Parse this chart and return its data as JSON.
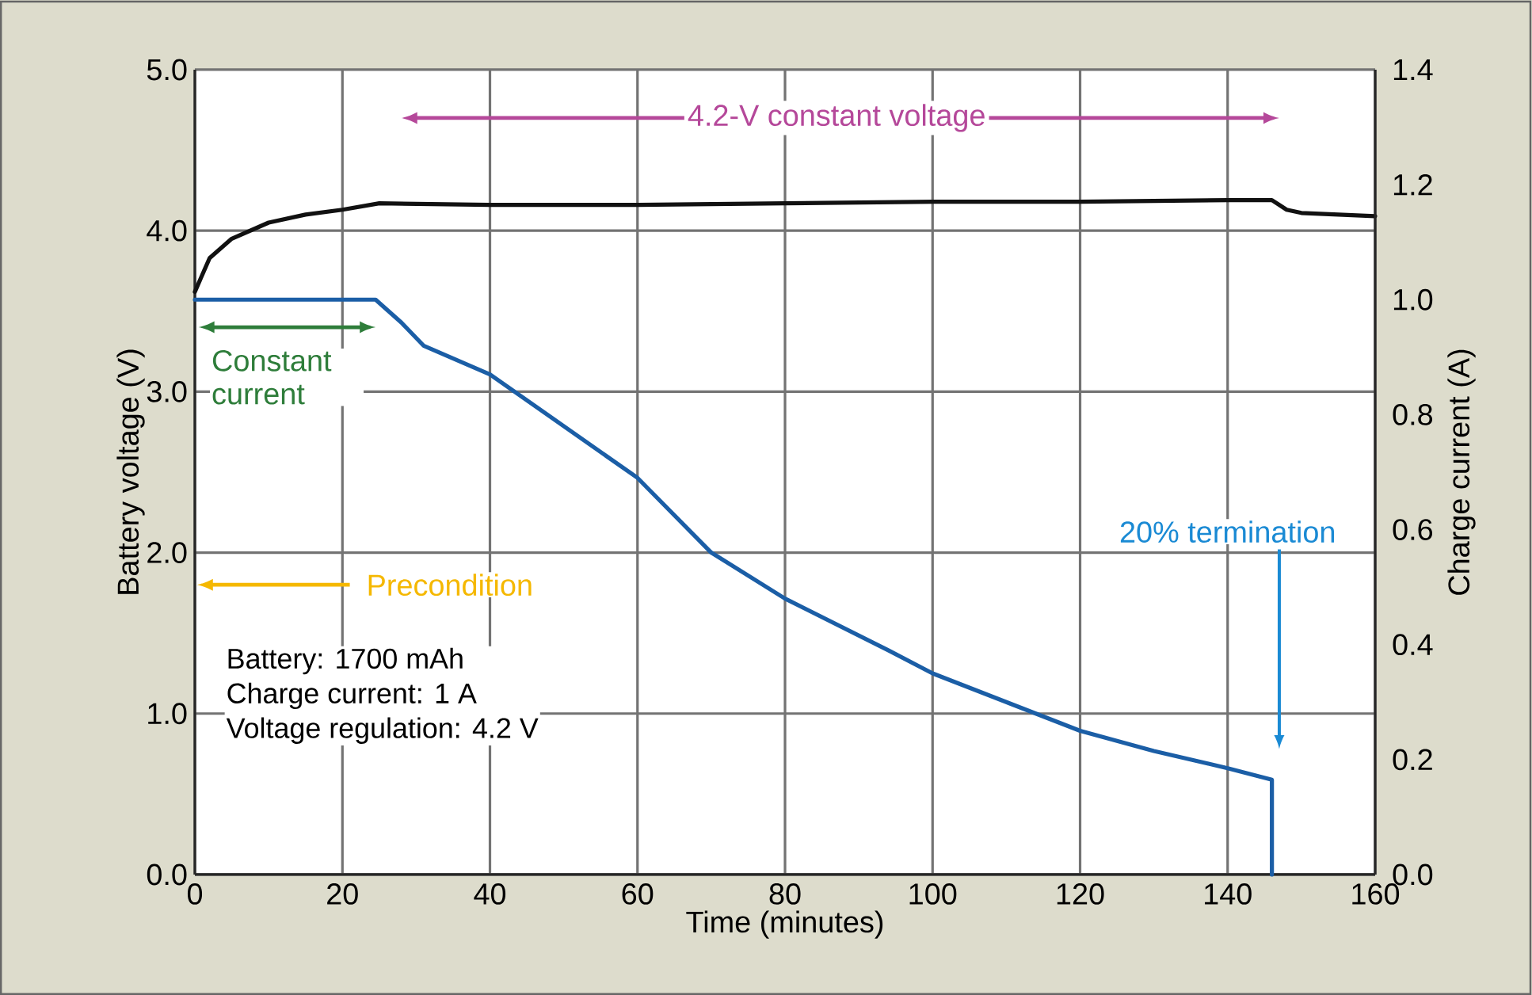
{
  "chart_data": {
    "type": "line",
    "xlabel": "Time (minutes)",
    "ylabel": "Battery voltage (V)",
    "y2label": "Charge current (A)",
    "xlim": [
      0,
      160
    ],
    "xticks": [
      0,
      20,
      40,
      60,
      80,
      100,
      120,
      140,
      160
    ],
    "ylim": [
      0,
      5
    ],
    "yticks": [
      {
        "value": 0,
        "label": "0.0"
      },
      {
        "value": 1,
        "label": "1.0"
      },
      {
        "value": 2,
        "label": "2.0"
      },
      {
        "value": 3,
        "label": "3.0"
      },
      {
        "value": 4,
        "label": "4.0"
      },
      {
        "value": 5,
        "label": "5.0"
      }
    ],
    "y2lim": [
      0,
      1.4
    ],
    "y2ticks": [
      {
        "value": 0,
        "label": "0.0"
      },
      {
        "value": 0.2,
        "label": "0.2"
      },
      {
        "value": 0.4,
        "label": "0.4"
      },
      {
        "value": 0.6,
        "label": "0.6"
      },
      {
        "value": 0.8,
        "label": "0.8"
      },
      {
        "value": 1.0,
        "label": "1.0"
      },
      {
        "value": 1.2,
        "label": "1.2"
      },
      {
        "value": 1.4,
        "label": "1.4"
      }
    ],
    "grid": true,
    "line_style": "solid",
    "series": [
      {
        "color": "#111111",
        "x": [
          0,
          2,
          5,
          10,
          15,
          20,
          25,
          40,
          60,
          80,
          100,
          120,
          140,
          146,
          148,
          150,
          160
        ],
        "values": [
          3.62,
          3.83,
          3.95,
          4.05,
          4.1,
          4.13,
          4.17,
          4.16,
          4.16,
          4.17,
          4.18,
          4.18,
          4.19,
          4.19,
          4.13,
          4.11,
          4.09
        ]
      },
      {
        "color": "#1b5ea6",
        "axis": "y2",
        "x": [
          0,
          24.5,
          28,
          31,
          40,
          50,
          60,
          70,
          80,
          94,
          100,
          110,
          120,
          130,
          140,
          146,
          146
        ],
        "values": [
          1.0,
          1.0,
          0.96,
          0.92,
          0.87,
          0.78,
          0.69,
          0.56,
          0.48,
          0.39,
          0.35,
          0.3,
          0.25,
          0.215,
          0.185,
          0.165,
          0
        ]
      }
    ],
    "annotations": [
      "4.2-V constant voltage",
      "Constant current",
      "Precondition",
      "20% termination",
      "Battery: 1700 mAh",
      "Charge current: 1 A",
      "Voltage regulation: 4.2 V"
    ]
  }
}
